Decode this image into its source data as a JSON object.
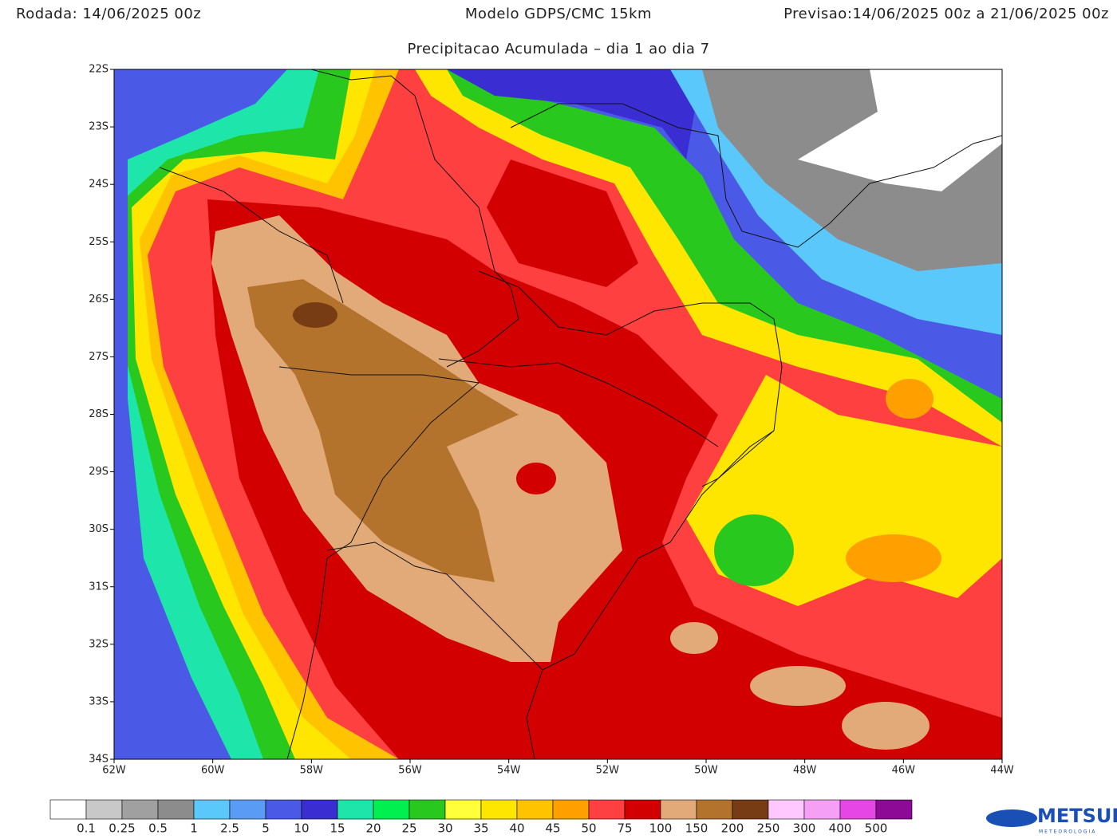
{
  "header": {
    "left": "Rodada: 14/06/2025 00z",
    "center": "Modelo GDPS/CMC 15km",
    "right": "Previsao:14/06/2025 00z a 21/06/2025 00z",
    "subtitle": "Precipitacao Acumulada – dia 1 ao dia 7"
  },
  "map": {
    "lonlim": [
      -62,
      -44
    ],
    "latlim": [
      -22,
      -34
    ],
    "lon_ticks": [
      {
        "value": -62,
        "label": "62W"
      },
      {
        "value": -60,
        "label": "60W"
      },
      {
        "value": -58,
        "label": "58W"
      },
      {
        "value": -56,
        "label": "56W"
      },
      {
        "value": -54,
        "label": "54W"
      },
      {
        "value": -52,
        "label": "52W"
      },
      {
        "value": -50,
        "label": "50W"
      },
      {
        "value": -48,
        "label": "48W"
      },
      {
        "value": -46,
        "label": "46W"
      },
      {
        "value": -44,
        "label": "44W"
      }
    ],
    "lat_ticks": [
      {
        "value": -22,
        "label": "22S"
      },
      {
        "value": -23,
        "label": "23S"
      },
      {
        "value": -24,
        "label": "24S"
      },
      {
        "value": -25,
        "label": "25S"
      },
      {
        "value": -26,
        "label": "26S"
      },
      {
        "value": -27,
        "label": "27S"
      },
      {
        "value": -28,
        "label": "28S"
      },
      {
        "value": -29,
        "label": "29S"
      },
      {
        "value": -30,
        "label": "30S"
      },
      {
        "value": -31,
        "label": "31S"
      },
      {
        "value": -32,
        "label": "32S"
      },
      {
        "value": -33,
        "label": "33S"
      },
      {
        "value": -34,
        "label": "34S"
      }
    ]
  },
  "colorbar": {
    "colors": [
      "#ffffff",
      "#c8c8c8",
      "#a0a0a0",
      "#8c8c8c",
      "#5ac8fa",
      "#5a9bf5",
      "#4a5ae6",
      "#3a2dd2",
      "#1ee6aa",
      "#00f050",
      "#28c81e",
      "#ffff3c",
      "#ffe600",
      "#ffc300",
      "#ffa000",
      "#ff4040",
      "#d20000",
      "#e1aa78",
      "#b4732d",
      "#783c14",
      "#ffc8ff",
      "#f5a0f5",
      "#e646e6",
      "#8c0a96"
    ],
    "labels": [
      "0.1",
      "0.25",
      "0.5",
      "1",
      "2.5",
      "5",
      "10",
      "15",
      "20",
      "25",
      "30",
      "35",
      "40",
      "45",
      "50",
      "75",
      "100",
      "150",
      "200",
      "250",
      "300",
      "400",
      "500"
    ]
  },
  "logo": {
    "text": "METSUL",
    "subtext": "METEOROLOGIA"
  }
}
